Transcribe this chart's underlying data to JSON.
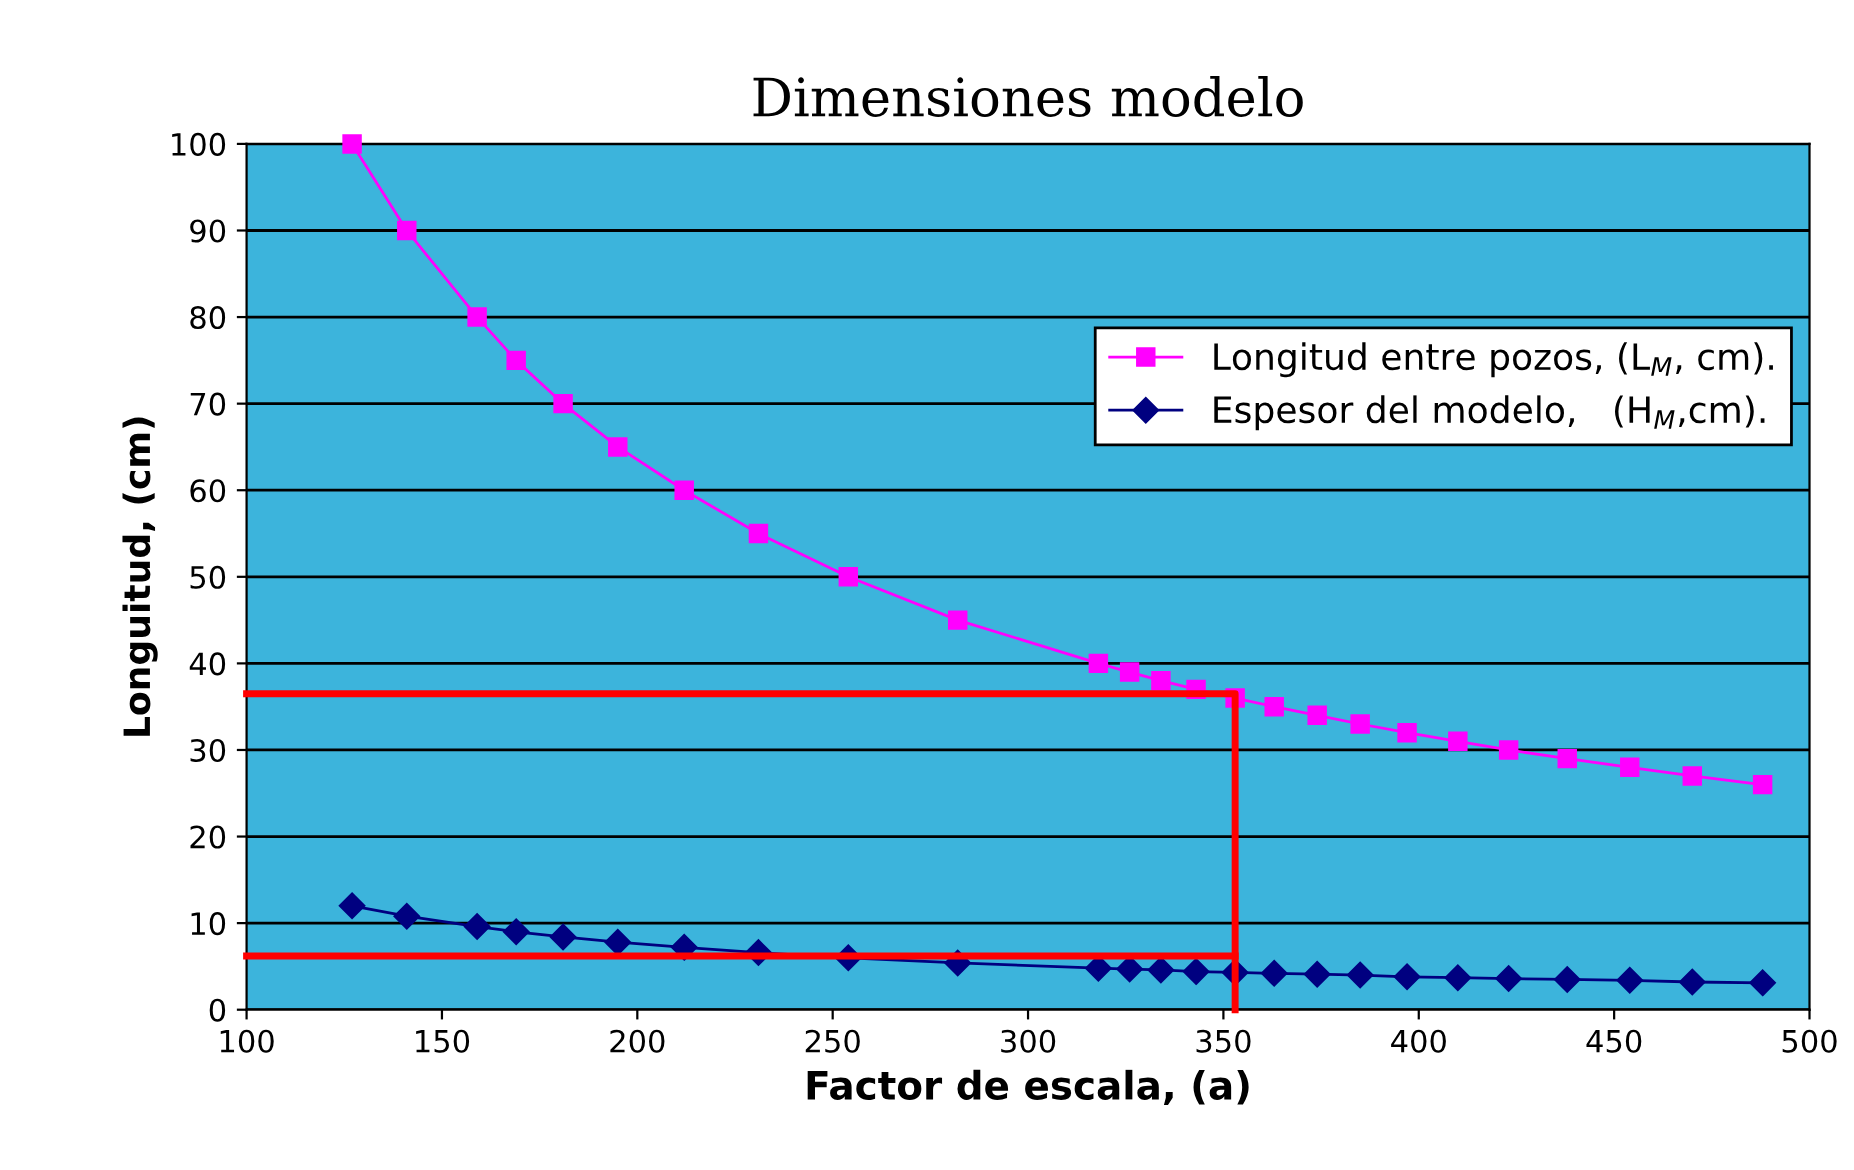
{
  "chart_data": {
    "type": "line",
    "title": "Dimensiones modelo",
    "xlabel": "Factor de escala, (a)",
    "ylabel": "Longuitud, (cm)",
    "xlim": [
      100,
      500
    ],
    "xticks": [
      100,
      150,
      200,
      250,
      300,
      350,
      400,
      450,
      500
    ],
    "ylim": [
      0,
      100
    ],
    "yticks": [
      0,
      10,
      20,
      30,
      40,
      50,
      60,
      70,
      80,
      90,
      100
    ],
    "grid": "y",
    "legend": "right",
    "series": [
      {
        "name": "Longitud entre pozos, (L$_{M}$, cm).",
        "color": "#ff00ff",
        "marker": "square",
        "x": [
          127,
          141,
          159,
          169,
          181,
          195,
          212,
          231,
          254,
          282,
          318,
          326,
          334,
          343,
          353,
          363,
          374,
          385,
          397,
          410,
          423,
          438,
          454,
          470,
          488
        ],
        "values": [
          100,
          90,
          80,
          75,
          70,
          65,
          60,
          55,
          50,
          45,
          40,
          39,
          38,
          37,
          36,
          35,
          34,
          33,
          32,
          31,
          30,
          29,
          28,
          27,
          26
        ]
      },
      {
        "name": "Espesor del modelo,   (H$_{M}$,cm).",
        "color": "#000080",
        "marker": "diamond",
        "x": [
          127,
          141,
          159,
          169,
          181,
          195,
          212,
          231,
          254,
          282,
          318,
          326,
          334,
          343,
          353,
          363,
          374,
          385,
          397,
          410,
          423,
          438,
          454,
          470,
          488
        ],
        "values": [
          12,
          10.8,
          9.6,
          9.0,
          8.4,
          7.8,
          7.2,
          6.6,
          6.0,
          5.4,
          4.8,
          4.7,
          4.6,
          4.4,
          4.3,
          4.2,
          4.1,
          4.0,
          3.8,
          3.7,
          3.6,
          3.5,
          3.4,
          3.2,
          3.1
        ]
      },
      {
        "color": "#ff0000",
        "marker": "none",
        "x": [
          100,
          353,
          353
        ],
        "values": [
          36.5,
          36.5,
          0
        ]
      },
      {
        "color": "#ff0000",
        "marker": "none",
        "x": [
          100,
          353
        ],
        "values": [
          6.2,
          6.2
        ]
      }
    ]
  }
}
